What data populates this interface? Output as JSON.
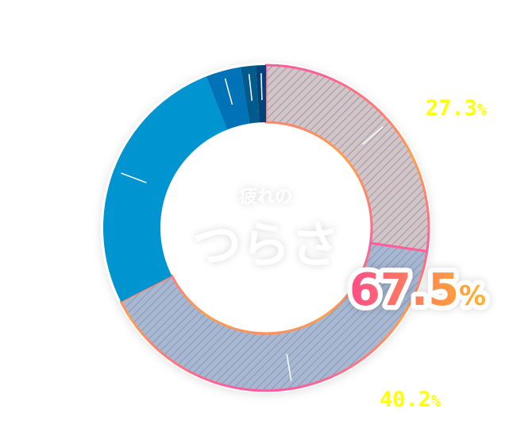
{
  "center_text": {
    "line1": "疲れの",
    "line2": "つらさ"
  },
  "highlight": {
    "number": "67.5",
    "unit": "%",
    "gradient": [
      "#ff4d88",
      "#ffb42a"
    ]
  },
  "chart_data": {
    "type": "pie",
    "donut": true,
    "slices": [
      {
        "value": 27.3,
        "label": "27.3",
        "unit": "%",
        "color": "#d4c4c4",
        "pattern": "hatched",
        "border": "#ff8a5c"
      },
      {
        "value": 40.2,
        "label": "40.2",
        "unit": "%",
        "color": "#a8b8d0",
        "pattern": "hatched",
        "border": "#ff5c9c"
      },
      {
        "value": 26.5,
        "color": "#0095d0"
      },
      {
        "value": 3.5,
        "color": "#0072b8"
      },
      {
        "value": 1.5,
        "color": "#005a8c"
      },
      {
        "value": 1.0,
        "color": "#00427a"
      }
    ]
  }
}
